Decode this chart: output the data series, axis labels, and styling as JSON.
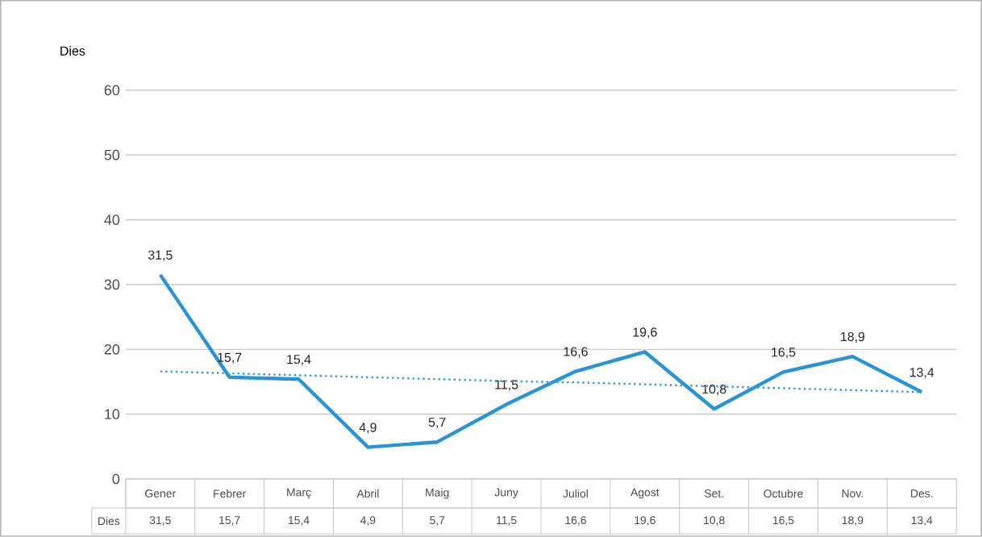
{
  "chart_data": {
    "type": "line",
    "ylabel": "Dies",
    "categories": [
      "Gener",
      "Febrer",
      "Març",
      "Abril",
      "Maig",
      "Juny",
      "Juliol",
      "Agost",
      "Set.",
      "Octubre",
      "Nov.",
      "Des."
    ],
    "series": [
      {
        "name": "Dies",
        "color": "#2a93d5",
        "values": [
          31.5,
          15.7,
          15.4,
          4.9,
          5.7,
          11.5,
          16.6,
          19.6,
          10.8,
          16.5,
          18.9,
          13.4
        ],
        "value_labels": [
          "31,5",
          "15,7",
          "15,4",
          "4,9",
          "5,7",
          "11,5",
          "16,6",
          "19,6",
          "10,8",
          "16,5",
          "18,9",
          "13,4"
        ]
      },
      {
        "type": "line",
        "color": "#2e9be0",
        "line_style": "dotted",
        "values": [
          16.6,
          16.3,
          16.0,
          15.7,
          15.4,
          15.1,
          14.9,
          14.6,
          14.3,
          14.0,
          13.7,
          13.4
        ]
      }
    ],
    "ylim": [
      0,
      60
    ],
    "yticks": [
      0,
      10,
      20,
      30,
      40,
      50,
      60
    ],
    "grid": "y",
    "marker": "none"
  }
}
